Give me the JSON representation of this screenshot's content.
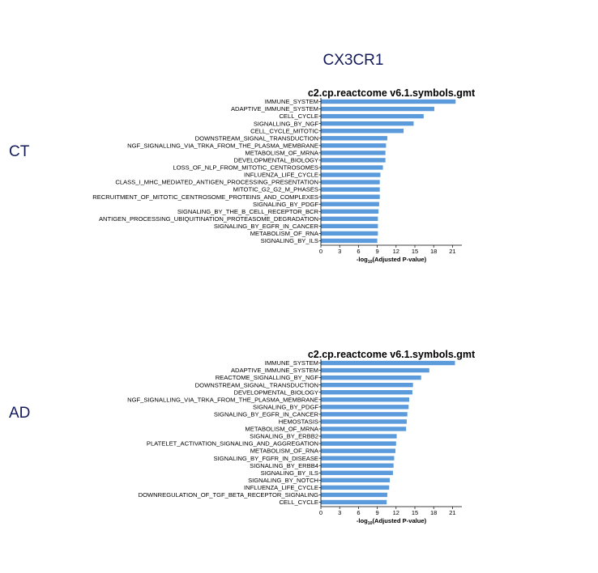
{
  "figure": {
    "gene": "CX3CR1",
    "row_labels": [
      "CT",
      "AD"
    ]
  },
  "chart_data": [
    {
      "type": "bar",
      "orientation": "horizontal",
      "group": "CT",
      "title": "c2.cp.reactcome v6.1.symbols.gmt",
      "xlabel_prefix": "-log",
      "xlabel_sub": "10",
      "xlabel_suffix": "(Adjusted P-value)",
      "xlim": [
        0,
        22.5
      ],
      "xticks": [
        0,
        3,
        6,
        9,
        12,
        15,
        18,
        21
      ],
      "color": "#5b9bdc",
      "categories": [
        "IMMUNE_SYSTEM",
        "ADAPTIVE_IMMUNE_SYSTEM",
        "CELL_CYCLE",
        "SIGNALLING_BY_NGF",
        "CELL_CYCLE_MITOTIC",
        "DOWNSTREAM_SIGNAL_TRANSDUCTION",
        "NGF_SIGNALLING_VIA_TRKA_FROM_THE_PLASMA_MEMBRANE",
        "METABOLISM_OF_MRNA",
        "DEVELOPMENTAL_BIOLOGY",
        "LOSS_OF_NLP_FROM_MITOTIC_CENTROSOMES",
        "INFLUENZA_LIFE_CYCLE",
        "CLASS_I_MHC_MEDIATED_ANTIGEN_PROCESSING_PRESENTATION",
        "MITOTIC_G2_G2_M_PHASES",
        "RECRUITMENT_OF_MITOTIC_CENTROSOME_PROTEINS_AND_COMPLEXES",
        "SIGNALING_BY_PDGF",
        "SIGNALING_BY_THE_B_CELL_RECEPTOR_BCR",
        "ANTIGEN_PROCESSING_UBIQUITINATION_PROTEASOME_DEGRADATION",
        "SIGNALING_BY_EGFR_IN_CANCER",
        "METABOLISM_OF_RNA",
        "SIGNALING_BY_ILS"
      ],
      "values": [
        21.5,
        18.1,
        16.4,
        14.8,
        13.2,
        10.6,
        10.4,
        10.3,
        10.3,
        9.9,
        9.5,
        9.4,
        9.4,
        9.4,
        9.3,
        9.2,
        9.1,
        9.1,
        9.1,
        9.0
      ]
    },
    {
      "type": "bar",
      "orientation": "horizontal",
      "group": "AD",
      "title": "c2.cp.reactcome v6.1.symbols.gmt",
      "xlabel_prefix": "-log",
      "xlabel_sub": "10",
      "xlabel_suffix": "(Adjusted P-value)",
      "xlim": [
        0,
        22.5
      ],
      "xticks": [
        0,
        3,
        6,
        9,
        12,
        15,
        18,
        21
      ],
      "color": "#5b9bdc",
      "categories": [
        "IMMUNE_SYSTEM",
        "ADAPTIVE_IMMUNE_SYSTEM",
        "REACTOME_SIGNALLING_BY_NGF",
        "DOWNSTREAM_SIGNAL_TRANSDUCTION",
        "DEVELOPMENTAL_BIOLOGY",
        "NGF_SIGNALLING_VIA_TRKA_FROM_THE_PLASMA_MEMBRANE",
        "SIGNALING_BY_PDGF",
        "SIGNALING_BY_EGFR_IN_CANCER",
        "HEMOSTASIS",
        "METABOLISM_OF_MRNA",
        "SIGNALING_BY_ERBB2",
        "PLATELET_ACTIVATION_SIGNALING_AND_AGGREGATION",
        "METABOLISM_OF_RNA",
        "SIGNALING_BY_FGFR_IN_DISEASE",
        "SIGNALING_BY_ERBB4",
        "SIGNALING_BY_ILS",
        "SIGNALING_BY_NOTCH",
        "INFLUENZA_LIFE_CYCLE",
        "DOWNREGULATION_OF_TGF_BETA_RECEPTOR_SIGNALING",
        "CELL_CYCLE"
      ],
      "values": [
        21.4,
        17.3,
        16.0,
        14.7,
        14.6,
        14.1,
        14.0,
        13.8,
        13.7,
        13.6,
        12.1,
        12.0,
        11.9,
        11.7,
        11.6,
        11.5,
        11.0,
        10.9,
        10.6,
        10.5
      ]
    }
  ]
}
